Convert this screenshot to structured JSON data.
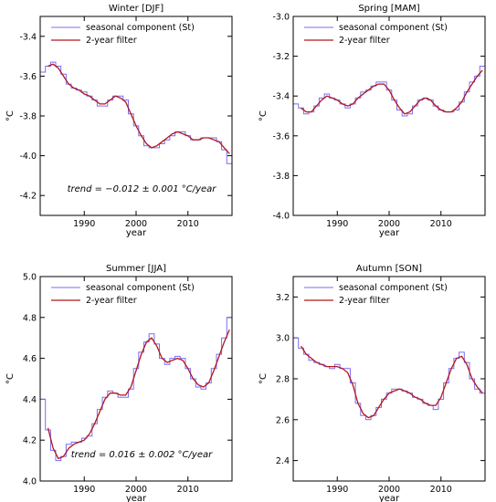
{
  "chart_data": [
    {
      "type": "line",
      "title": "Winter [DJF]",
      "xlabel": "year",
      "ylabel": "°C",
      "xlim": [
        1981.5,
        2018.5
      ],
      "ylim": [
        -4.3,
        -3.3
      ],
      "xticks": [
        1990,
        2000,
        2010
      ],
      "yticks": [
        -4.2,
        -4.0,
        -3.8,
        -3.6,
        -3.4
      ],
      "legend_position": "top-left",
      "annotation": "trend = −0.012 ± 0.001 °C/year",
      "series": [
        {
          "name": "seasonal component (St)",
          "step": true,
          "x": [
            1982,
            1983,
            1984,
            1985,
            1986,
            1987,
            1988,
            1989,
            1990,
            1991,
            1992,
            1993,
            1994,
            1995,
            1996,
            1997,
            1998,
            1999,
            2000,
            2001,
            2002,
            2003,
            2004,
            2005,
            2006,
            2007,
            2008,
            2009,
            2010,
            2011,
            2012,
            2013,
            2014,
            2015,
            2016,
            2017,
            2018
          ],
          "y": [
            -3.58,
            -3.55,
            -3.53,
            -3.55,
            -3.59,
            -3.64,
            -3.66,
            -3.67,
            -3.68,
            -3.7,
            -3.72,
            -3.75,
            -3.75,
            -3.72,
            -3.7,
            -3.7,
            -3.72,
            -3.79,
            -3.85,
            -3.9,
            -3.95,
            -3.96,
            -3.96,
            -3.94,
            -3.92,
            -3.9,
            -3.88,
            -3.88,
            -3.9,
            -3.92,
            -3.92,
            -3.91,
            -3.91,
            -3.91,
            -3.93,
            -3.97,
            -4.04
          ]
        },
        {
          "name": "2-year filter",
          "step": false,
          "x": [
            1983,
            1984,
            1985,
            1986,
            1987,
            1988,
            1989,
            1990,
            1991,
            1992,
            1993,
            1994,
            1995,
            1996,
            1997,
            1998,
            1999,
            2000,
            2001,
            2002,
            2003,
            2004,
            2005,
            2006,
            2007,
            2008,
            2009,
            2010,
            2011,
            2012,
            2013,
            2014,
            2015,
            2016,
            2017,
            2018
          ],
          "y": [
            -3.55,
            -3.54,
            -3.56,
            -3.6,
            -3.64,
            -3.66,
            -3.67,
            -3.69,
            -3.7,
            -3.72,
            -3.74,
            -3.74,
            -3.72,
            -3.7,
            -3.71,
            -3.73,
            -3.79,
            -3.85,
            -3.9,
            -3.94,
            -3.96,
            -3.95,
            -3.93,
            -3.91,
            -3.89,
            -3.88,
            -3.89,
            -3.9,
            -3.92,
            -3.92,
            -3.91,
            -3.91,
            -3.92,
            -3.93,
            -3.96,
            -3.99
          ]
        }
      ]
    },
    {
      "type": "line",
      "title": "Spring [MAM]",
      "xlabel": "year",
      "ylabel": "°C",
      "xlim": [
        1981.5,
        2018.5
      ],
      "ylim": [
        -4.0,
        -3.0
      ],
      "xticks": [
        1990,
        2000,
        2010
      ],
      "yticks": [
        -4.0,
        -3.8,
        -3.6,
        -3.4,
        -3.2,
        -3.0
      ],
      "legend_position": "top-left",
      "annotation": "",
      "series": [
        {
          "name": "seasonal component (St)",
          "step": true,
          "x": [
            1982,
            1983,
            1984,
            1985,
            1986,
            1987,
            1988,
            1989,
            1990,
            1991,
            1992,
            1993,
            1994,
            1995,
            1996,
            1997,
            1998,
            1999,
            2000,
            2001,
            2002,
            2003,
            2004,
            2005,
            2006,
            2007,
            2008,
            2009,
            2010,
            2011,
            2012,
            2013,
            2014,
            2015,
            2016,
            2017,
            2018
          ],
          "y": [
            -3.44,
            -3.46,
            -3.49,
            -3.48,
            -3.45,
            -3.41,
            -3.39,
            -3.41,
            -3.42,
            -3.44,
            -3.46,
            -3.44,
            -3.41,
            -3.38,
            -3.37,
            -3.35,
            -3.33,
            -3.33,
            -3.37,
            -3.42,
            -3.47,
            -3.5,
            -3.49,
            -3.45,
            -3.42,
            -3.41,
            -3.42,
            -3.45,
            -3.47,
            -3.48,
            -3.48,
            -3.47,
            -3.43,
            -3.38,
            -3.33,
            -3.3,
            -3.25
          ]
        },
        {
          "name": "2-year filter",
          "step": false,
          "x": [
            1983,
            1984,
            1985,
            1986,
            1987,
            1988,
            1989,
            1990,
            1991,
            1992,
            1993,
            1994,
            1995,
            1996,
            1997,
            1998,
            1999,
            2000,
            2001,
            2002,
            2003,
            2004,
            2005,
            2006,
            2007,
            2008,
            2009,
            2010,
            2011,
            2012,
            2013,
            2014,
            2015,
            2016,
            2017,
            2018
          ],
          "y": [
            -3.46,
            -3.48,
            -3.48,
            -3.45,
            -3.42,
            -3.4,
            -3.41,
            -3.42,
            -3.44,
            -3.45,
            -3.44,
            -3.41,
            -3.39,
            -3.37,
            -3.35,
            -3.34,
            -3.34,
            -3.37,
            -3.42,
            -3.46,
            -3.49,
            -3.48,
            -3.45,
            -3.42,
            -3.41,
            -3.42,
            -3.45,
            -3.47,
            -3.48,
            -3.48,
            -3.46,
            -3.43,
            -3.38,
            -3.34,
            -3.3,
            -3.27
          ]
        }
      ]
    },
    {
      "type": "line",
      "title": "Summer [JJA]",
      "xlabel": "year",
      "ylabel": "°C",
      "xlim": [
        1981.5,
        2018.5
      ],
      "ylim": [
        4.0,
        5.0
      ],
      "xticks": [
        1990,
        2000,
        2010
      ],
      "yticks": [
        4.0,
        4.2,
        4.4,
        4.6,
        4.8,
        5.0
      ],
      "legend_position": "top-left",
      "annotation": "trend = 0.016 ± 0.002 °C/year",
      "series": [
        {
          "name": "seasonal component (St)",
          "step": true,
          "x": [
            1982,
            1983,
            1984,
            1985,
            1986,
            1987,
            1988,
            1989,
            1990,
            1991,
            1992,
            1993,
            1994,
            1995,
            1996,
            1997,
            1998,
            1999,
            2000,
            2001,
            2002,
            2003,
            2004,
            2005,
            2006,
            2007,
            2008,
            2009,
            2010,
            2011,
            2012,
            2013,
            2014,
            2015,
            2016,
            2017,
            2018
          ],
          "y": [
            4.4,
            4.25,
            4.15,
            4.1,
            4.12,
            4.18,
            4.19,
            4.19,
            4.21,
            4.22,
            4.28,
            4.35,
            4.41,
            4.44,
            4.43,
            4.41,
            4.41,
            4.45,
            4.55,
            4.63,
            4.68,
            4.72,
            4.67,
            4.6,
            4.57,
            4.6,
            4.61,
            4.6,
            4.55,
            4.5,
            4.46,
            4.45,
            4.48,
            4.55,
            4.62,
            4.7,
            4.8
          ]
        },
        {
          "name": "2-year filter",
          "step": false,
          "x": [
            1983,
            1984,
            1985,
            1986,
            1987,
            1988,
            1989,
            1990,
            1991,
            1992,
            1993,
            1994,
            1995,
            1996,
            1997,
            1998,
            1999,
            2000,
            2001,
            2002,
            2003,
            2004,
            2005,
            2006,
            2007,
            2008,
            2009,
            2010,
            2011,
            2012,
            2013,
            2014,
            2015,
            2016,
            2017,
            2018
          ],
          "y": [
            4.26,
            4.16,
            4.11,
            4.12,
            4.16,
            4.18,
            4.19,
            4.2,
            4.23,
            4.28,
            4.34,
            4.4,
            4.43,
            4.43,
            4.42,
            4.42,
            4.46,
            4.54,
            4.62,
            4.68,
            4.7,
            4.66,
            4.6,
            4.58,
            4.59,
            4.6,
            4.59,
            4.55,
            4.5,
            4.47,
            4.46,
            4.48,
            4.54,
            4.61,
            4.68,
            4.74
          ]
        }
      ]
    },
    {
      "type": "line",
      "title": "Autumn [SON]",
      "xlabel": "year",
      "ylabel": "°C",
      "xlim": [
        1981.5,
        2018.5
      ],
      "ylim": [
        2.3,
        3.3
      ],
      "xticks": [
        1990,
        2000,
        2010
      ],
      "yticks": [
        2.4,
        2.6,
        2.8,
        3.0,
        3.2
      ],
      "legend_position": "top-left",
      "annotation": "",
      "series": [
        {
          "name": "seasonal component (St)",
          "step": true,
          "x": [
            1982,
            1983,
            1984,
            1985,
            1986,
            1987,
            1988,
            1989,
            1990,
            1991,
            1992,
            1993,
            1994,
            1995,
            1996,
            1997,
            1998,
            1999,
            2000,
            2001,
            2002,
            2003,
            2004,
            2005,
            2006,
            2007,
            2008,
            2009,
            2010,
            2011,
            2012,
            2013,
            2014,
            2015,
            2016,
            2017,
            2018
          ],
          "y": [
            3.0,
            2.95,
            2.92,
            2.89,
            2.88,
            2.87,
            2.86,
            2.85,
            2.87,
            2.85,
            2.85,
            2.78,
            2.68,
            2.62,
            2.6,
            2.62,
            2.66,
            2.7,
            2.73,
            2.75,
            2.75,
            2.74,
            2.73,
            2.71,
            2.7,
            2.68,
            2.67,
            2.65,
            2.7,
            2.78,
            2.85,
            2.9,
            2.93,
            2.88,
            2.8,
            2.75,
            2.73
          ]
        },
        {
          "name": "2-year filter",
          "step": false,
          "x": [
            1983,
            1984,
            1985,
            1986,
            1987,
            1988,
            1989,
            1990,
            1991,
            1992,
            1993,
            1994,
            1995,
            1996,
            1997,
            1998,
            1999,
            2000,
            2001,
            2002,
            2003,
            2004,
            2005,
            2006,
            2007,
            2008,
            2009,
            2010,
            2011,
            2012,
            2013,
            2014,
            2015,
            2016,
            2017,
            2018
          ],
          "y": [
            2.96,
            2.92,
            2.9,
            2.88,
            2.87,
            2.86,
            2.86,
            2.86,
            2.85,
            2.83,
            2.77,
            2.68,
            2.63,
            2.61,
            2.62,
            2.66,
            2.7,
            2.73,
            2.74,
            2.75,
            2.74,
            2.73,
            2.71,
            2.7,
            2.68,
            2.67,
            2.67,
            2.71,
            2.78,
            2.85,
            2.9,
            2.91,
            2.87,
            2.8,
            2.76,
            2.73
          ]
        }
      ]
    }
  ],
  "colors": {
    "seasonal": "#7b6cf2",
    "filter": "#b3171b",
    "axes": "#000000"
  }
}
